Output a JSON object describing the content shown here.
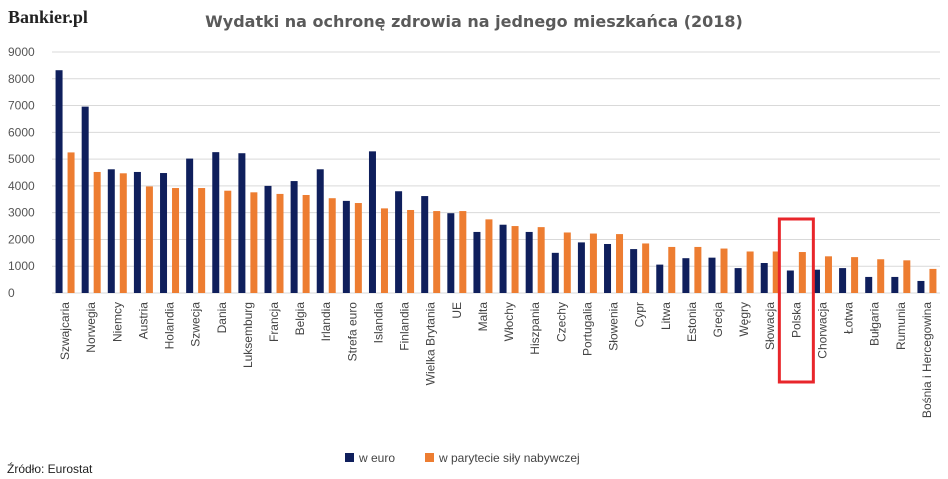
{
  "brand": "Bankier.pl",
  "source": "Źródło: Eurostat",
  "colors": {
    "euro": "#0f1f5c",
    "ppp": "#ed7d31",
    "highlight": "#e8262b"
  },
  "highlight_category": "Polska",
  "chart_data": {
    "type": "bar",
    "title": "Wydatki na ochronę zdrowia na jednego mieszkańca (2018)",
    "xlabel": "",
    "ylabel": "",
    "ylim": [
      0,
      9000
    ],
    "yticks": [
      0,
      1000,
      2000,
      3000,
      4000,
      5000,
      6000,
      7000,
      8000,
      9000
    ],
    "grid": true,
    "legend_position": "bottom",
    "categories": [
      "Szwajcaria",
      "Norwegia",
      "Niemcy",
      "Austria",
      "Holandia",
      "Szwecja",
      "Dania",
      "Luksemburg",
      "Francja",
      "Belgia",
      "Irlandia",
      "Strefa euro",
      "Islandia",
      "Finlandia",
      "Wielka Brytania",
      "UE",
      "Malta",
      "Włochy",
      "Hiszpania",
      "Czechy",
      "Portugalia",
      "Słowenia",
      "Cypr",
      "Litwa",
      "Estonia",
      "Grecja",
      "Węgry",
      "Słowacja",
      "Polska",
      "Chorwacja",
      "Łotwa",
      "Bułgaria",
      "Rumunia",
      "Bośnia i Hercegowina"
    ],
    "series": [
      {
        "name": "w euro",
        "values": [
          8320,
          6960,
          4620,
          4520,
          4480,
          5020,
          5260,
          5220,
          4000,
          4180,
          4620,
          3440,
          5290,
          3800,
          3620,
          2980,
          2280,
          2550,
          2280,
          1500,
          1890,
          1830,
          1640,
          1060,
          1300,
          1320,
          930,
          1120,
          840,
          870,
          930,
          600,
          600,
          450
        ]
      },
      {
        "name": "w parytecie siły nabywczej",
        "values": [
          5250,
          4520,
          4470,
          3980,
          3920,
          3920,
          3820,
          3760,
          3700,
          3660,
          3540,
          3360,
          3160,
          3100,
          3060,
          3060,
          2750,
          2500,
          2460,
          2260,
          2220,
          2200,
          1850,
          1720,
          1720,
          1660,
          1550,
          1550,
          1530,
          1370,
          1340,
          1260,
          1220,
          900
        ]
      }
    ]
  }
}
